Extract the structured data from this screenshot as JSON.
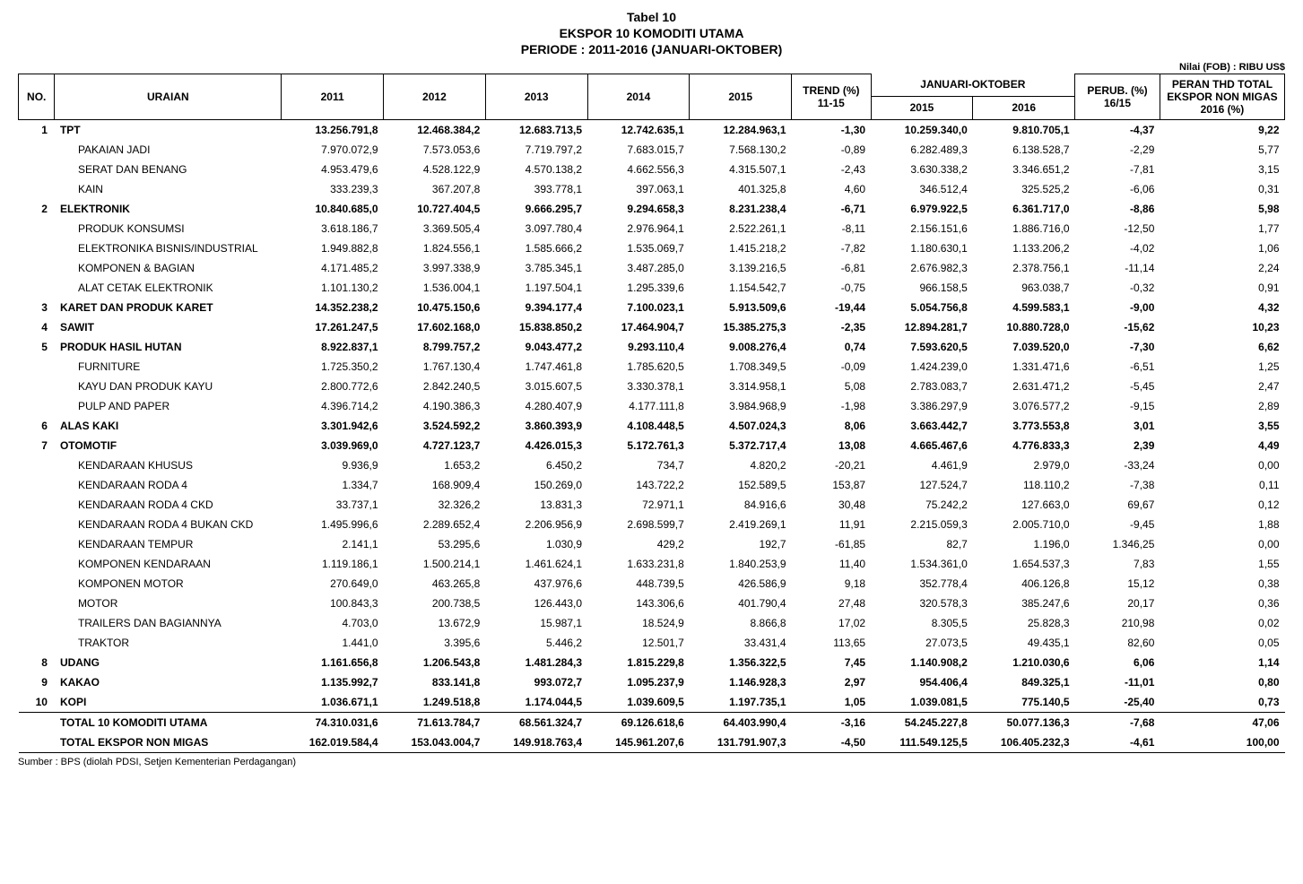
{
  "title": {
    "line1": "Tabel 10",
    "line2": "EKSPOR 10 KOMODITI UTAMA",
    "line3": "PERIODE : 2011-2016  (JANUARI-OKTOBER)"
  },
  "unit_note": "Nilai (FOB) : RIBU US$",
  "headers": {
    "no": "NO.",
    "uraian": "URAIAN",
    "y2011": "2011",
    "y2012": "2012",
    "y2013": "2013",
    "y2014": "2014",
    "y2015": "2015",
    "trend": "TREND (%) 11-15",
    "jan_okt": "JANUARI-OKTOBER",
    "jo2015": "2015",
    "jo2016": "2016",
    "perub": "PERUB. (%) 16/15",
    "peran": "PERAN THD TOTAL EKSPOR NON MIGAS 2016 (%)"
  },
  "rows": [
    {
      "no": "1",
      "label": "TPT",
      "bold": true,
      "indent": false,
      "v": [
        "13.256.791,8",
        "12.468.384,2",
        "12.683.713,5",
        "12.742.635,1",
        "12.284.963,1",
        "-1,30",
        "10.259.340,0",
        "9.810.705,1",
        "-4,37",
        "9,22"
      ]
    },
    {
      "no": "",
      "label": "PAKAIAN JADI",
      "bold": false,
      "indent": true,
      "v": [
        "7.970.072,9",
        "7.573.053,6",
        "7.719.797,2",
        "7.683.015,7",
        "7.568.130,2",
        "-0,89",
        "6.282.489,3",
        "6.138.528,7",
        "-2,29",
        "5,77"
      ]
    },
    {
      "no": "",
      "label": "SERAT DAN BENANG",
      "bold": false,
      "indent": true,
      "v": [
        "4.953.479,6",
        "4.528.122,9",
        "4.570.138,2",
        "4.662.556,3",
        "4.315.507,1",
        "-2,43",
        "3.630.338,2",
        "3.346.651,2",
        "-7,81",
        "3,15"
      ]
    },
    {
      "no": "",
      "label": "KAIN",
      "bold": false,
      "indent": true,
      "v": [
        "333.239,3",
        "367.207,8",
        "393.778,1",
        "397.063,1",
        "401.325,8",
        "4,60",
        "346.512,4",
        "325.525,2",
        "-6,06",
        "0,31"
      ]
    },
    {
      "no": "2",
      "label": "ELEKTRONIK",
      "bold": true,
      "indent": false,
      "v": [
        "10.840.685,0",
        "10.727.404,5",
        "9.666.295,7",
        "9.294.658,3",
        "8.231.238,4",
        "-6,71",
        "6.979.922,5",
        "6.361.717,0",
        "-8,86",
        "5,98"
      ]
    },
    {
      "no": "",
      "label": "PRODUK KONSUMSI",
      "bold": false,
      "indent": true,
      "v": [
        "3.618.186,7",
        "3.369.505,4",
        "3.097.780,4",
        "2.976.964,1",
        "2.522.261,1",
        "-8,11",
        "2.156.151,6",
        "1.886.716,0",
        "-12,50",
        "1,77"
      ]
    },
    {
      "no": "",
      "label": "ELEKTRONIKA BISNIS/INDUSTRIAL",
      "bold": false,
      "indent": true,
      "v": [
        "1.949.882,8",
        "1.824.556,1",
        "1.585.666,2",
        "1.535.069,7",
        "1.415.218,2",
        "-7,82",
        "1.180.630,1",
        "1.133.206,2",
        "-4,02",
        "1,06"
      ]
    },
    {
      "no": "",
      "label": "KOMPONEN & BAGIAN",
      "bold": false,
      "indent": true,
      "v": [
        "4.171.485,2",
        "3.997.338,9",
        "3.785.345,1",
        "3.487.285,0",
        "3.139.216,5",
        "-6,81",
        "2.676.982,3",
        "2.378.756,1",
        "-11,14",
        "2,24"
      ]
    },
    {
      "no": "",
      "label": "ALAT CETAK ELEKTRONIK",
      "bold": false,
      "indent": true,
      "v": [
        "1.101.130,2",
        "1.536.004,1",
        "1.197.504,1",
        "1.295.339,6",
        "1.154.542,7",
        "-0,75",
        "966.158,5",
        "963.038,7",
        "-0,32",
        "0,91"
      ]
    },
    {
      "no": "3",
      "label": "KARET DAN PRODUK KARET",
      "bold": true,
      "indent": false,
      "v": [
        "14.352.238,2",
        "10.475.150,6",
        "9.394.177,4",
        "7.100.023,1",
        "5.913.509,6",
        "-19,44",
        "5.054.756,8",
        "4.599.583,1",
        "-9,00",
        "4,32"
      ]
    },
    {
      "no": "4",
      "label": "SAWIT",
      "bold": true,
      "indent": false,
      "v": [
        "17.261.247,5",
        "17.602.168,0",
        "15.838.850,2",
        "17.464.904,7",
        "15.385.275,3",
        "-2,35",
        "12.894.281,7",
        "10.880.728,0",
        "-15,62",
        "10,23"
      ]
    },
    {
      "no": "5",
      "label": "PRODUK HASIL HUTAN",
      "bold": true,
      "indent": false,
      "v": [
        "8.922.837,1",
        "8.799.757,2",
        "9.043.477,2",
        "9.293.110,4",
        "9.008.276,4",
        "0,74",
        "7.593.620,5",
        "7.039.520,0",
        "-7,30",
        "6,62"
      ]
    },
    {
      "no": "",
      "label": "FURNITURE",
      "bold": false,
      "indent": true,
      "v": [
        "1.725.350,2",
        "1.767.130,4",
        "1.747.461,8",
        "1.785.620,5",
        "1.708.349,5",
        "-0,09",
        "1.424.239,0",
        "1.331.471,6",
        "-6,51",
        "1,25"
      ]
    },
    {
      "no": "",
      "label": "KAYU DAN PRODUK KAYU",
      "bold": false,
      "indent": true,
      "v": [
        "2.800.772,6",
        "2.842.240,5",
        "3.015.607,5",
        "3.330.378,1",
        "3.314.958,1",
        "5,08",
        "2.783.083,7",
        "2.631.471,2",
        "-5,45",
        "2,47"
      ]
    },
    {
      "no": "",
      "label": "PULP AND PAPER",
      "bold": false,
      "indent": true,
      "v": [
        "4.396.714,2",
        "4.190.386,3",
        "4.280.407,9",
        "4.177.111,8",
        "3.984.968,9",
        "-1,98",
        "3.386.297,9",
        "3.076.577,2",
        "-9,15",
        "2,89"
      ]
    },
    {
      "no": "6",
      "label": "ALAS KAKI",
      "bold": true,
      "indent": false,
      "v": [
        "3.301.942,6",
        "3.524.592,2",
        "3.860.393,9",
        "4.108.448,5",
        "4.507.024,3",
        "8,06",
        "3.663.442,7",
        "3.773.553,8",
        "3,01",
        "3,55"
      ]
    },
    {
      "no": "7",
      "label": "OTOMOTIF",
      "bold": true,
      "indent": false,
      "v": [
        "3.039.969,0",
        "4.727.123,7",
        "4.426.015,3",
        "5.172.761,3",
        "5.372.717,4",
        "13,08",
        "4.665.467,6",
        "4.776.833,3",
        "2,39",
        "4,49"
      ]
    },
    {
      "no": "",
      "label": "KENDARAAN KHUSUS",
      "bold": false,
      "indent": true,
      "v": [
        "9.936,9",
        "1.653,2",
        "6.450,2",
        "734,7",
        "4.820,2",
        "-20,21",
        "4.461,9",
        "2.979,0",
        "-33,24",
        "0,00"
      ]
    },
    {
      "no": "",
      "label": "KENDARAAN RODA 4",
      "bold": false,
      "indent": true,
      "v": [
        "1.334,7",
        "168.909,4",
        "150.269,0",
        "143.722,2",
        "152.589,5",
        "153,87",
        "127.524,7",
        "118.110,2",
        "-7,38",
        "0,11"
      ]
    },
    {
      "no": "",
      "label": "KENDARAAN RODA 4 CKD",
      "bold": false,
      "indent": true,
      "v": [
        "33.737,1",
        "32.326,2",
        "13.831,3",
        "72.971,1",
        "84.916,6",
        "30,48",
        "75.242,2",
        "127.663,0",
        "69,67",
        "0,12"
      ]
    },
    {
      "no": "",
      "label": "KENDARAAN RODA 4 BUKAN CKD",
      "bold": false,
      "indent": true,
      "v": [
        "1.495.996,6",
        "2.289.652,4",
        "2.206.956,9",
        "2.698.599,7",
        "2.419.269,1",
        "11,91",
        "2.215.059,3",
        "2.005.710,0",
        "-9,45",
        "1,88"
      ]
    },
    {
      "no": "",
      "label": "KENDARAAN TEMPUR",
      "bold": false,
      "indent": true,
      "v": [
        "2.141,1",
        "53.295,6",
        "1.030,9",
        "429,2",
        "192,7",
        "-61,85",
        "82,7",
        "1.196,0",
        "1.346,25",
        "0,00"
      ]
    },
    {
      "no": "",
      "label": "KOMPONEN KENDARAAN",
      "bold": false,
      "indent": true,
      "v": [
        "1.119.186,1",
        "1.500.214,1",
        "1.461.624,1",
        "1.633.231,8",
        "1.840.253,9",
        "11,40",
        "1.534.361,0",
        "1.654.537,3",
        "7,83",
        "1,55"
      ]
    },
    {
      "no": "",
      "label": "KOMPONEN MOTOR",
      "bold": false,
      "indent": true,
      "v": [
        "270.649,0",
        "463.265,8",
        "437.976,6",
        "448.739,5",
        "426.586,9",
        "9,18",
        "352.778,4",
        "406.126,8",
        "15,12",
        "0,38"
      ]
    },
    {
      "no": "",
      "label": "MOTOR",
      "bold": false,
      "indent": true,
      "v": [
        "100.843,3",
        "200.738,5",
        "126.443,0",
        "143.306,6",
        "401.790,4",
        "27,48",
        "320.578,3",
        "385.247,6",
        "20,17",
        "0,36"
      ]
    },
    {
      "no": "",
      "label": "TRAILERS DAN BAGIANNYA",
      "bold": false,
      "indent": true,
      "v": [
        "4.703,0",
        "13.672,9",
        "15.987,1",
        "18.524,9",
        "8.866,8",
        "17,02",
        "8.305,5",
        "25.828,3",
        "210,98",
        "0,02"
      ]
    },
    {
      "no": "",
      "label": "TRAKTOR",
      "bold": false,
      "indent": true,
      "v": [
        "1.441,0",
        "3.395,6",
        "5.446,2",
        "12.501,7",
        "33.431,4",
        "113,65",
        "27.073,5",
        "49.435,1",
        "82,60",
        "0,05"
      ]
    },
    {
      "no": "8",
      "label": "UDANG",
      "bold": true,
      "indent": false,
      "v": [
        "1.161.656,8",
        "1.206.543,8",
        "1.481.284,3",
        "1.815.229,8",
        "1.356.322,5",
        "7,45",
        "1.140.908,2",
        "1.210.030,6",
        "6,06",
        "1,14"
      ]
    },
    {
      "no": "9",
      "label": "KAKAO",
      "bold": true,
      "indent": false,
      "v": [
        "1.135.992,7",
        "833.141,8",
        "993.072,7",
        "1.095.237,9",
        "1.146.928,3",
        "2,97",
        "954.406,4",
        "849.325,1",
        "-11,01",
        "0,80"
      ]
    },
    {
      "no": "10",
      "label": "KOPI",
      "bold": true,
      "indent": false,
      "v": [
        "1.036.671,1",
        "1.249.518,8",
        "1.174.044,5",
        "1.039.609,5",
        "1.197.735,1",
        "1,05",
        "1.039.081,5",
        "775.140,5",
        "-25,40",
        "0,73"
      ]
    }
  ],
  "totals": [
    {
      "label": "TOTAL 10 KOMODITI UTAMA",
      "v": [
        "74.310.031,6",
        "71.613.784,7",
        "68.561.324,7",
        "69.126.618,6",
        "64.403.990,4",
        "-3,16",
        "54.245.227,8",
        "50.077.136,3",
        "-7,68",
        "47,06"
      ]
    },
    {
      "label": "TOTAL EKSPOR NON MIGAS",
      "v": [
        "162.019.584,4",
        "153.043.004,7",
        "149.918.763,4",
        "145.961.207,6",
        "131.791.907,3",
        "-4,50",
        "111.549.125,5",
        "106.405.232,3",
        "-4,61",
        "100,00"
      ]
    }
  ],
  "source": "Sumber : BPS (diolah PDSI, Setjen Kementerian Perdagangan)"
}
